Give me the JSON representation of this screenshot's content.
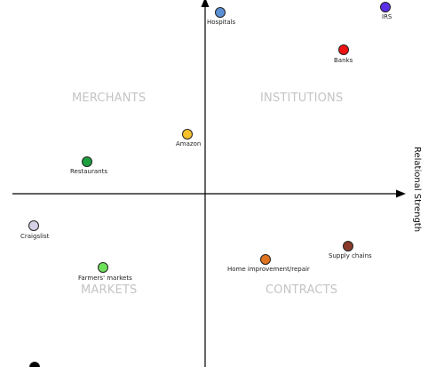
{
  "diagram": {
    "axis_label_x": "Relational Strength",
    "quadrants": {
      "top_left": "MERCHANTS",
      "top_right": "INSTITUTIONS",
      "bottom_left": "MARKETS",
      "bottom_right": "CONTRACTS"
    },
    "entities": [
      {
        "label": "Hospitals",
        "color": "#5b8fd6"
      },
      {
        "label": "IRS",
        "color": "#5a2ee6"
      },
      {
        "label": "Banks",
        "color": "#ee1111"
      },
      {
        "label": "Amazon",
        "color": "#f5c12c"
      },
      {
        "label": "Restaurants",
        "color": "#1c9e3f"
      },
      {
        "label": "Craigslist",
        "color": "#d6d0e6"
      },
      {
        "label": "Farmers' markets",
        "color": "#6fe05a"
      },
      {
        "label": "Home improvement/repair",
        "color": "#e0731f"
      },
      {
        "label": "Supply chains",
        "color": "#8a3a2a"
      },
      {
        "label": "",
        "color": "#000000"
      }
    ]
  }
}
